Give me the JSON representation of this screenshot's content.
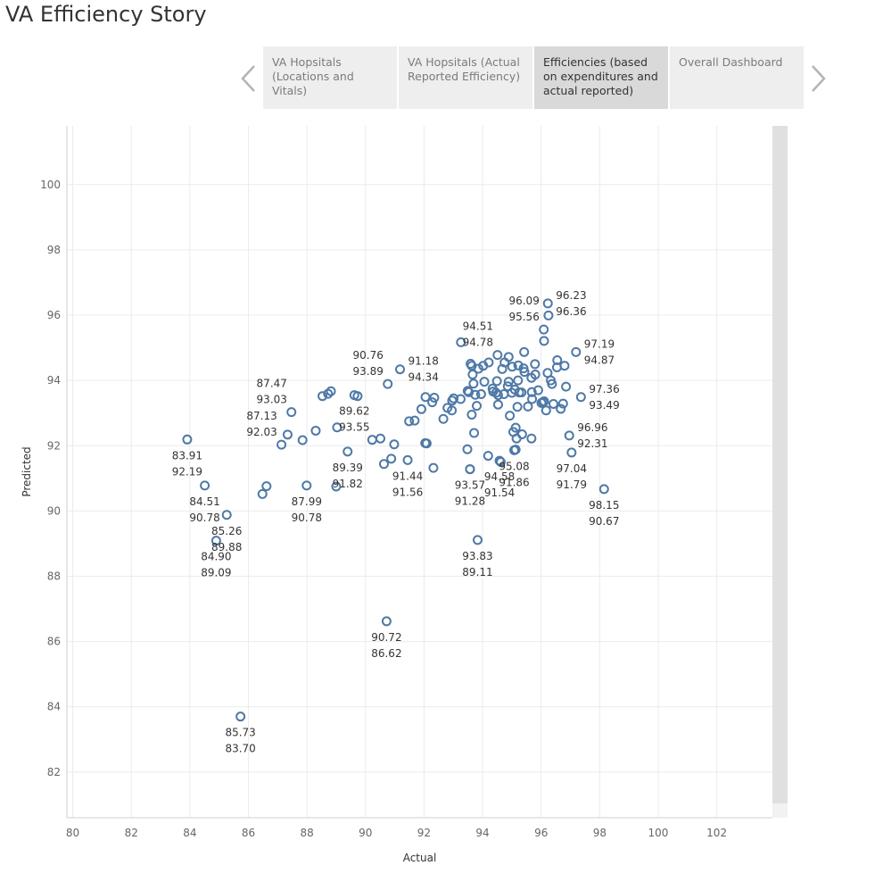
{
  "page": {
    "title": "VA Efficiency Story"
  },
  "navigation": {
    "prev_icon": "chevron-left-icon",
    "next_icon": "chevron-right-icon",
    "tabs": [
      {
        "label": "VA Hopsitals (Locations and Vitals)",
        "active": false
      },
      {
        "label": "VA Hopsitals (Actual Reported Efficiency)",
        "active": false
      },
      {
        "label": "Efficiencies (based on expenditures and actual reported)",
        "active": true
      },
      {
        "label": "Overall Dashboard",
        "active": false
      }
    ]
  },
  "colors": {
    "marker": "#4e79a7",
    "grid": "#ebebeb",
    "tick_text": "#666666",
    "label_text": "#333333"
  },
  "chart_data": {
    "type": "scatter",
    "xlabel": "Actual",
    "ylabel": "Predicted",
    "xlim": [
      79.8,
      103.9
    ],
    "ylim": [
      80.6,
      101.8
    ],
    "xticks": [
      80,
      82,
      84,
      86,
      88,
      90,
      92,
      94,
      96,
      98,
      100,
      102
    ],
    "yticks": [
      82,
      84,
      86,
      88,
      90,
      92,
      94,
      96,
      98,
      100
    ],
    "grid": true,
    "labeled_points": [
      {
        "x": 96.23,
        "y": 96.36,
        "label_x": "96.23",
        "label_y": "96.36"
      },
      {
        "x": 94.51,
        "y": 94.78,
        "label_x": "94.51",
        "label_y": "94.78"
      },
      {
        "x": 96.09,
        "y": 95.56,
        "label_x": "96.09",
        "label_y": "95.56"
      },
      {
        "x": 97.19,
        "y": 94.87,
        "label_x": "97.19",
        "label_y": "94.87"
      },
      {
        "x": 90.76,
        "y": 93.89,
        "label_x": "90.76",
        "label_y": "93.89"
      },
      {
        "x": 91.18,
        "y": 94.34,
        "label_x": "91.18",
        "label_y": "94.34"
      },
      {
        "x": 97.36,
        "y": 93.49,
        "label_x": "97.36",
        "label_y": "93.49"
      },
      {
        "x": 87.47,
        "y": 93.03,
        "label_x": "87.47",
        "label_y": "93.03"
      },
      {
        "x": 89.62,
        "y": 93.55,
        "label_x": "89.62",
        "label_y": "93.55"
      },
      {
        "x": 87.13,
        "y": 92.03,
        "label_x": "87.13",
        "label_y": "92.03"
      },
      {
        "x": 89.39,
        "y": 91.82,
        "label_x": "89.39",
        "label_y": "91.82"
      },
      {
        "x": 96.96,
        "y": 92.31,
        "label_x": "96.96",
        "label_y": "92.31"
      },
      {
        "x": 83.91,
        "y": 92.19,
        "label_x": "83.91",
        "label_y": "92.19"
      },
      {
        "x": 95.08,
        "y": 91.86,
        "label_x": "95.08",
        "label_y": "91.86"
      },
      {
        "x": 97.04,
        "y": 91.79,
        "label_x": "97.04",
        "label_y": "91.79"
      },
      {
        "x": 91.44,
        "y": 91.56,
        "label_x": "91.44",
        "label_y": "91.56"
      },
      {
        "x": 94.58,
        "y": 91.54,
        "label_x": "94.58",
        "label_y": "91.54"
      },
      {
        "x": 93.57,
        "y": 91.28,
        "label_x": "93.57",
        "label_y": "91.28"
      },
      {
        "x": 84.51,
        "y": 90.78,
        "label_x": "84.51",
        "label_y": "90.78"
      },
      {
        "x": 87.99,
        "y": 90.78,
        "label_x": "87.99",
        "label_y": "90.78"
      },
      {
        "x": 98.15,
        "y": 90.67,
        "label_x": "98.15",
        "label_y": "90.67"
      },
      {
        "x": 85.26,
        "y": 89.88,
        "label_x": "85.26",
        "label_y": "89.88"
      },
      {
        "x": 84.9,
        "y": 89.09,
        "label_x": "84.90",
        "label_y": "89.09"
      },
      {
        "x": 93.83,
        "y": 89.11,
        "label_x": "93.83",
        "label_y": "89.11"
      },
      {
        "x": 90.72,
        "y": 86.62,
        "label_x": "90.72",
        "label_y": "86.62"
      },
      {
        "x": 85.73,
        "y": 83.7,
        "label_x": "85.73",
        "label_y": "83.70"
      }
    ],
    "points": [
      [
        96.23,
        96.36
      ],
      [
        94.51,
        94.78
      ],
      [
        96.09,
        95.56
      ],
      [
        97.19,
        94.87
      ],
      [
        90.76,
        93.89
      ],
      [
        91.18,
        94.34
      ],
      [
        97.36,
        93.49
      ],
      [
        87.47,
        93.03
      ],
      [
        89.62,
        93.55
      ],
      [
        87.13,
        92.03
      ],
      [
        89.39,
        91.82
      ],
      [
        96.96,
        92.31
      ],
      [
        83.91,
        92.19
      ],
      [
        95.08,
        91.86
      ],
      [
        97.04,
        91.79
      ],
      [
        91.44,
        91.56
      ],
      [
        94.58,
        91.54
      ],
      [
        93.57,
        91.28
      ],
      [
        84.51,
        90.78
      ],
      [
        87.99,
        90.78
      ],
      [
        98.15,
        90.67
      ],
      [
        85.26,
        89.88
      ],
      [
        84.9,
        89.09
      ],
      [
        93.83,
        89.11
      ],
      [
        90.72,
        86.62
      ],
      [
        85.73,
        83.7
      ],
      [
        96.25,
        95.99
      ],
      [
        96.1,
        95.21
      ],
      [
        93.26,
        95.17
      ],
      [
        95.42,
        94.87
      ],
      [
        94.89,
        94.72
      ],
      [
        96.55,
        94.62
      ],
      [
        94.75,
        94.55
      ],
      [
        94.21,
        94.55
      ],
      [
        93.59,
        94.51
      ],
      [
        95.79,
        94.5
      ],
      [
        94.02,
        94.45
      ],
      [
        93.63,
        94.45
      ],
      [
        95.22,
        94.46
      ],
      [
        95.01,
        94.42
      ],
      [
        96.8,
        94.45
      ],
      [
        96.54,
        94.4
      ],
      [
        93.86,
        94.36
      ],
      [
        94.67,
        94.35
      ],
      [
        95.4,
        94.37
      ],
      [
        95.43,
        94.26
      ],
      [
        96.22,
        94.23
      ],
      [
        93.66,
        94.18
      ],
      [
        95.8,
        94.18
      ],
      [
        95.67,
        94.08
      ],
      [
        96.33,
        94.0
      ],
      [
        95.21,
        94.0
      ],
      [
        94.49,
        93.98
      ],
      [
        94.06,
        93.96
      ],
      [
        94.89,
        93.96
      ],
      [
        96.37,
        93.89
      ],
      [
        93.69,
        93.9
      ],
      [
        94.86,
        93.82
      ],
      [
        96.85,
        93.81
      ],
      [
        94.34,
        93.75
      ],
      [
        95.1,
        93.72
      ],
      [
        95.9,
        93.7
      ],
      [
        93.49,
        93.68
      ],
      [
        94.36,
        93.66
      ],
      [
        95.68,
        93.64
      ],
      [
        94.46,
        93.62
      ],
      [
        95.0,
        93.62
      ],
      [
        95.33,
        93.63
      ],
      [
        93.53,
        93.64
      ],
      [
        95.25,
        93.63
      ],
      [
        93.95,
        93.58
      ],
      [
        94.73,
        93.58
      ],
      [
        93.75,
        93.56
      ],
      [
        94.53,
        93.55
      ],
      [
        92.05,
        93.49
      ],
      [
        92.35,
        93.47
      ],
      [
        93.01,
        93.45
      ],
      [
        93.25,
        93.43
      ],
      [
        95.69,
        93.43
      ],
      [
        92.96,
        93.38
      ],
      [
        92.28,
        93.33
      ],
      [
        96.1,
        93.36
      ],
      [
        96.07,
        93.33
      ],
      [
        96.01,
        93.31
      ],
      [
        96.42,
        93.28
      ],
      [
        96.75,
        93.29
      ],
      [
        93.8,
        93.22
      ],
      [
        95.55,
        93.2
      ],
      [
        95.19,
        93.19
      ],
      [
        94.53,
        93.26
      ],
      [
        92.8,
        93.16
      ],
      [
        96.67,
        93.13
      ],
      [
        91.91,
        93.12
      ],
      [
        96.17,
        93.08
      ],
      [
        92.95,
        93.08
      ],
      [
        94.93,
        92.92
      ],
      [
        93.63,
        92.95
      ],
      [
        92.66,
        92.82
      ],
      [
        91.68,
        92.77
      ],
      [
        91.49,
        92.75
      ],
      [
        95.13,
        92.55
      ],
      [
        95.05,
        92.42
      ],
      [
        93.71,
        92.39
      ],
      [
        95.35,
        92.35
      ],
      [
        95.67,
        92.22
      ],
      [
        95.16,
        92.22
      ],
      [
        90.23,
        92.18
      ],
      [
        90.51,
        92.22
      ],
      [
        92.04,
        92.08
      ],
      [
        92.09,
        92.07
      ],
      [
        90.98,
        92.04
      ],
      [
        93.48,
        91.89
      ],
      [
        95.13,
        91.88
      ],
      [
        94.19,
        91.69
      ],
      [
        90.88,
        91.6
      ],
      [
        94.62,
        91.5
      ],
      [
        90.63,
        91.44
      ],
      [
        93.57,
        91.28
      ],
      [
        92.32,
        91.32
      ],
      [
        89.0,
        90.75
      ],
      [
        86.62,
        90.76
      ],
      [
        86.48,
        90.52
      ],
      [
        88.53,
        93.52
      ],
      [
        88.72,
        93.59
      ],
      [
        88.82,
        93.67
      ],
      [
        89.73,
        93.52
      ],
      [
        88.3,
        92.46
      ],
      [
        87.34,
        92.34
      ],
      [
        89.03,
        92.56
      ],
      [
        87.85,
        92.17
      ]
    ]
  }
}
